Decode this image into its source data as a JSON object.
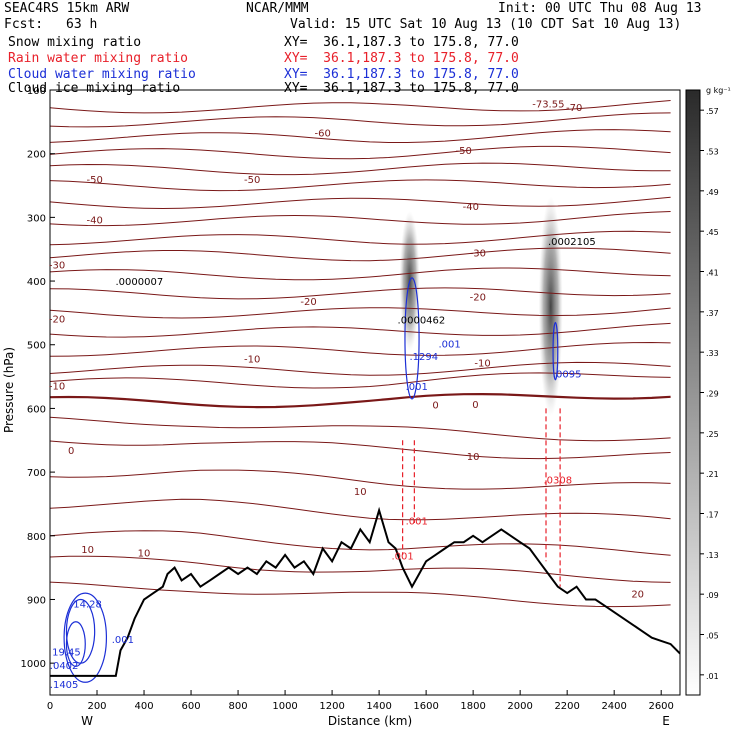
{
  "header": {
    "model": "SEAC4RS 15km ARW",
    "center": "NCAR/MMM",
    "init": "Init: 00 UTC Thu 08 Aug 13",
    "fcst_label": "Fcst:",
    "fcst_value": "63 h",
    "valid": "Valid: 15 UTC Sat 10 Aug 13 (10 CDT Sat 10 Aug 13)"
  },
  "fields": [
    {
      "name": "Snow mixing ratio",
      "xy": "XY=  36.1,187.3 to 175.8, 77.0",
      "color": "#000000"
    },
    {
      "name": "Rain water mixing ratio",
      "xy": "XY=  36.1,187.3 to 175.8, 77.0",
      "color": "#e8202a"
    },
    {
      "name": "Cloud water mixing ratio",
      "xy": "XY=  36.1,187.3 to 175.8, 77.0",
      "color": "#1c2fd6"
    },
    {
      "name": "Cloud ice mixing ratio",
      "xy": "XY=  36.1,187.3 to 175.8, 77.0",
      "color": "#000000"
    }
  ],
  "chart_data": {
    "type": "contour",
    "xlabel": "Distance (km)",
    "ylabel": "Pressure (hPa)",
    "xlim": [
      0,
      2680
    ],
    "ylim": [
      1050,
      100
    ],
    "x_ticks": [
      0,
      200,
      400,
      600,
      800,
      1000,
      1200,
      1400,
      1600,
      1800,
      2000,
      2200,
      2400,
      2600
    ],
    "y_ticks": [
      200,
      300,
      400,
      500,
      600,
      700,
      800,
      900,
      1000
    ],
    "y_tick_100": "100",
    "direction_left": "W",
    "direction_right": "E",
    "colorbar": {
      "units": "g kg⁻¹",
      "labels": [
        ".01",
        ".05",
        ".09",
        ".13",
        ".17",
        ".21",
        ".25",
        ".29",
        ".33",
        ".37",
        ".41",
        ".45",
        ".49",
        ".53",
        ".57"
      ]
    },
    "isotherms": [
      {
        "label": "-70",
        "x": 2230,
        "p": 127
      },
      {
        "label": "-60",
        "x": 1160,
        "p": 167
      },
      {
        "label": "-50",
        "x": 1760,
        "p": 194
      },
      {
        "label": "-50",
        "x": 190,
        "p": 240
      },
      {
        "label": "-50",
        "x": 860,
        "p": 240
      },
      {
        "label": "-40",
        "x": 190,
        "p": 303
      },
      {
        "label": "-40",
        "x": 1790,
        "p": 282
      },
      {
        "label": "-30",
        "x": 1820,
        "p": 355
      },
      {
        "label": "-30",
        "x": 30,
        "p": 374
      },
      {
        "label": "-20",
        "x": 1100,
        "p": 431
      },
      {
        "label": "-20",
        "x": 1820,
        "p": 424
      },
      {
        "label": "-20",
        "x": 30,
        "p": 459
      },
      {
        "label": "-10",
        "x": 860,
        "p": 522
      },
      {
        "label": "-10",
        "x": 1840,
        "p": 528
      },
      {
        "label": "-10",
        "x": 30,
        "p": 564
      },
      {
        "label": "0",
        "x": 1640,
        "p": 594
      },
      {
        "label": "0",
        "x": 1810,
        "p": 593
      },
      {
        "label": "0",
        "x": 90,
        "p": 665
      },
      {
        "label": "10",
        "x": 1320,
        "p": 730
      },
      {
        "label": "10",
        "x": 1800,
        "p": 675
      },
      {
        "label": "10",
        "x": 160,
        "p": 821
      },
      {
        "label": "10",
        "x": 400,
        "p": 826
      },
      {
        "label": "20",
        "x": 2500,
        "p": 891
      },
      {
        "label": "-73.55",
        "x": 2120,
        "p": 121
      }
    ],
    "maxima": [
      {
        "label": ".0000007",
        "x": 380,
        "p": 400,
        "color": "#000000"
      },
      {
        "label": ".0000462",
        "x": 1580,
        "p": 460,
        "color": "#000000"
      },
      {
        "label": ".0002105",
        "x": 2220,
        "p": 337,
        "color": "#000000"
      },
      {
        "label": ".1294",
        "x": 1590,
        "p": 518,
        "color": "#1c2fd6"
      },
      {
        "label": ".0095",
        "x": 2200,
        "p": 545,
        "color": "#1c2fd6"
      },
      {
        "label": ".001",
        "x": 1700,
        "p": 498,
        "color": "#1c2fd6"
      },
      {
        "label": ".001",
        "x": 1560,
        "p": 565,
        "color": "#1c2fd6"
      },
      {
        "label": ".0308",
        "x": 2160,
        "p": 712,
        "color": "#e8202a"
      },
      {
        "label": ".001",
        "x": 1560,
        "p": 776,
        "color": "#e8202a"
      },
      {
        "label": ".001",
        "x": 1500,
        "p": 831,
        "color": "#e8202a"
      },
      {
        "label": "14.28",
        "x": 160,
        "p": 906,
        "color": "#1c2fd6"
      },
      {
        "label": "19.45",
        "x": 70,
        "p": 982,
        "color": "#1c2fd6"
      },
      {
        "label": ".001",
        "x": 310,
        "p": 962,
        "color": "#1c2fd6"
      },
      {
        "label": ".0402",
        "x": 60,
        "p": 1003,
        "color": "#1c2fd6"
      },
      {
        "label": ".1405",
        "x": 60,
        "p": 1033,
        "color": "#1c2fd6"
      }
    ],
    "terrain": [
      [
        0,
        1020
      ],
      [
        280,
        1020
      ],
      [
        300,
        980
      ],
      [
        330,
        960
      ],
      [
        360,
        930
      ],
      [
        400,
        900
      ],
      [
        440,
        890
      ],
      [
        480,
        880
      ],
      [
        500,
        860
      ],
      [
        530,
        850
      ],
      [
        560,
        870
      ],
      [
        600,
        860
      ],
      [
        640,
        880
      ],
      [
        680,
        870
      ],
      [
        720,
        860
      ],
      [
        760,
        850
      ],
      [
        800,
        860
      ],
      [
        840,
        850
      ],
      [
        880,
        860
      ],
      [
        920,
        840
      ],
      [
        960,
        850
      ],
      [
        1000,
        830
      ],
      [
        1040,
        850
      ],
      [
        1080,
        840
      ],
      [
        1120,
        860
      ],
      [
        1160,
        820
      ],
      [
        1200,
        840
      ],
      [
        1240,
        810
      ],
      [
        1280,
        820
      ],
      [
        1320,
        790
      ],
      [
        1360,
        810
      ],
      [
        1400,
        760
      ],
      [
        1440,
        810
      ],
      [
        1470,
        820
      ],
      [
        1500,
        850
      ],
      [
        1540,
        880
      ],
      [
        1570,
        860
      ],
      [
        1600,
        840
      ],
      [
        1640,
        830
      ],
      [
        1680,
        820
      ],
      [
        1720,
        810
      ],
      [
        1760,
        810
      ],
      [
        1800,
        800
      ],
      [
        1840,
        810
      ],
      [
        1880,
        800
      ],
      [
        1920,
        790
      ],
      [
        1960,
        800
      ],
      [
        2000,
        810
      ],
      [
        2040,
        820
      ],
      [
        2080,
        840
      ],
      [
        2120,
        860
      ],
      [
        2160,
        880
      ],
      [
        2200,
        890
      ],
      [
        2240,
        880
      ],
      [
        2280,
        900
      ],
      [
        2320,
        900
      ],
      [
        2360,
        910
      ],
      [
        2400,
        920
      ],
      [
        2440,
        930
      ],
      [
        2480,
        940
      ],
      [
        2520,
        950
      ],
      [
        2560,
        960
      ],
      [
        2600,
        965
      ],
      [
        2640,
        970
      ],
      [
        2680,
        985
      ]
    ]
  }
}
